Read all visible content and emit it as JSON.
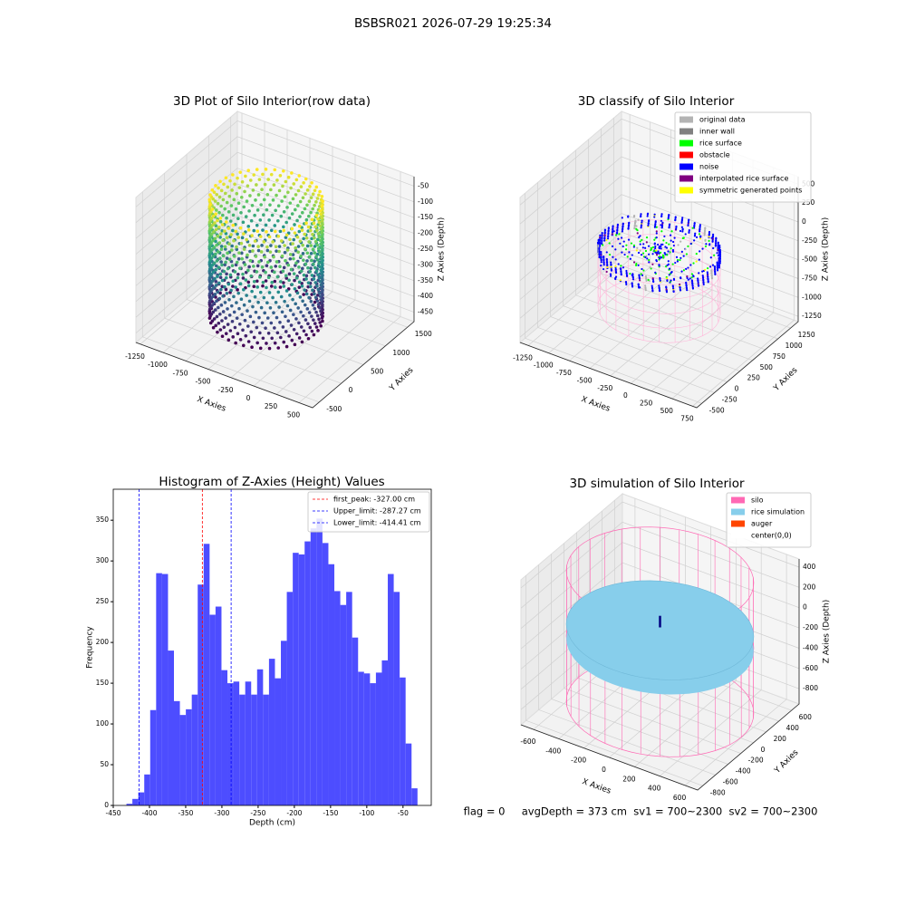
{
  "title": "BSBSR021 2026-07-29 19:25:34",
  "footer": "flag = 0     avgDepth = 373 cm  sv1 = 700~2300  sv2 = 700~2300",
  "chart_data": [
    {
      "type": "scatter3d",
      "title": "3D Plot of Silo Interior(row data)",
      "xlabel": "X Axies",
      "ylabel": "Y Axies",
      "zlabel": "Z Axies (Depth)",
      "xlim": [
        -1300,
        650
      ],
      "ylim": [
        -650,
        1650
      ],
      "zlim": [
        -480,
        -20
      ],
      "xticks": [
        -1250,
        -1000,
        -750,
        -500,
        -250,
        0,
        250,
        500
      ],
      "yticks": [
        -500,
        0,
        500,
        1000,
        1500
      ],
      "zticks": [
        -450,
        -400,
        -350,
        -300,
        -250,
        -200,
        -150,
        -100,
        -50
      ],
      "colormap": "viridis"
    },
    {
      "type": "scatter3d",
      "title": "3D classify of Silo Interior",
      "xlabel": "X Axies",
      "ylabel": "Y Axies",
      "zlabel": "Z Axies (Depth)",
      "xlim": [
        -1350,
        800
      ],
      "ylim": [
        -600,
        1400
      ],
      "zlim": [
        -1320,
        600
      ],
      "xticks": [
        -1250,
        -1000,
        -750,
        -500,
        -250,
        0,
        250,
        500,
        750
      ],
      "yticks": [
        -500,
        -250,
        0,
        250,
        500,
        750,
        1000,
        1250
      ],
      "zticks": [
        -1250,
        -1000,
        -750,
        -500,
        -250,
        0,
        250,
        500
      ],
      "legend": [
        {
          "name": "original data",
          "color": "#b3b3b3"
        },
        {
          "name": "inner wall",
          "color": "#808080"
        },
        {
          "name": "rice surface",
          "color": "#00ff00"
        },
        {
          "name": "obstacle",
          "color": "#ff0000"
        },
        {
          "name": "noise",
          "color": "#0000ff"
        },
        {
          "name": "interpolated rice surface",
          "color": "#800080"
        },
        {
          "name": "symmetric generated points",
          "color": "#ffff00"
        }
      ]
    },
    {
      "type": "histogram",
      "title": "Histogram of Z-Axies (Height) Values",
      "xlabel": "Depth (cm)",
      "ylabel": "Frequency",
      "bins": [
        -431.8,
        -423.6,
        -415.4,
        -407.2,
        -399.0,
        -390.8,
        -382.6,
        -374.4,
        -366.2,
        -358.0,
        -349.8,
        -341.6,
        -333.4,
        -325.2,
        -317.0,
        -308.8,
        -300.6,
        -292.4,
        -284.2,
        -276.0,
        -267.8,
        -259.6,
        -251.4,
        -243.2,
        -235.0,
        -226.8,
        -218.6,
        -210.4,
        -202.2,
        -194.0,
        -185.8,
        -177.6,
        -169.4,
        -161.2,
        -153.0,
        -144.8,
        -136.6,
        -128.4,
        -120.2,
        -112.0,
        -103.8,
        -95.6,
        -87.4,
        -79.2,
        -71.0,
        -62.8,
        -54.6,
        -46.4,
        -38.2,
        -30.0
      ],
      "counts": [
        2,
        8,
        16,
        38,
        117,
        285,
        284,
        190,
        128,
        111,
        118,
        136,
        271,
        321,
        234,
        244,
        166,
        150,
        152,
        136,
        152,
        136,
        167,
        136,
        180,
        156,
        202,
        262,
        310,
        308,
        324,
        340,
        352,
        322,
        296,
        263,
        246,
        262,
        206,
        164,
        162,
        150,
        163,
        178,
        284,
        262,
        157,
        76,
        21
      ],
      "color": "#4d4dff",
      "xlim": [
        -450,
        -11
      ],
      "ylim": [
        0,
        388
      ],
      "xticks": [
        -450,
        -400,
        -350,
        -300,
        -250,
        -200,
        -150,
        -100,
        -50
      ],
      "yticks": [
        0,
        50,
        100,
        150,
        200,
        250,
        300,
        350
      ],
      "lines": [
        {
          "name": "first_peak: -327.00 cm",
          "value": -327.0,
          "color": "#ff0000"
        },
        {
          "name": "Upper_limit: -287.27 cm",
          "value": -287.27,
          "color": "#0000ff"
        },
        {
          "name": "Lower_limit: -414.41 cm",
          "value": -414.41,
          "color": "#0000ff"
        }
      ]
    },
    {
      "type": "surface3d",
      "title": "3D simulation of Silo Interior",
      "xlabel": "X Axies",
      "ylabel": "Y Axies",
      "zlabel": "Z Axies (Depth)",
      "xlim": [
        -700,
        700
      ],
      "ylim": [
        -880,
        720
      ],
      "zlim": [
        -950,
        480
      ],
      "xticks": [
        -600,
        -400,
        -200,
        0,
        200,
        400,
        600
      ],
      "yticks": [
        -800,
        -600,
        -400,
        -200,
        0,
        200,
        400,
        600
      ],
      "zticks": [
        -800,
        -600,
        -400,
        -200,
        0,
        200,
        400
      ],
      "legend": [
        {
          "name": "silo",
          "color": "#ff69b4"
        },
        {
          "name": "rice simulation",
          "color": "#87ceeb"
        },
        {
          "name": "auger",
          "color": "#ff4500"
        },
        {
          "name": "center(0,0)",
          "color": "#ffffff"
        }
      ]
    }
  ]
}
